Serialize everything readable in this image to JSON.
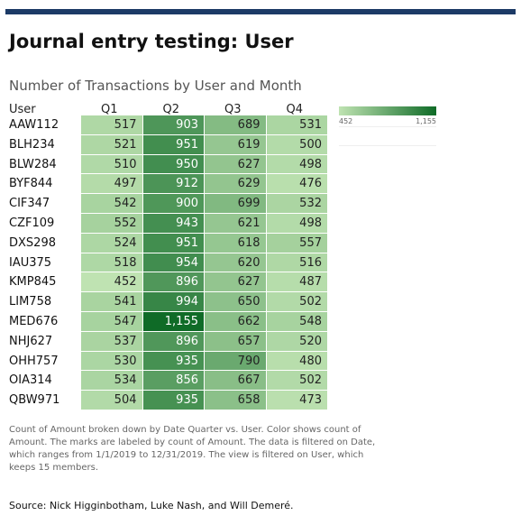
{
  "page": {
    "title": "Journal entry testing: User",
    "caption": "Count of Amount broken down by Date Quarter vs. User.  Color shows count of Amount.  The marks are labeled by count of Amount. The data is filtered on Date, which ranges from 1/1/2019 to 12/31/2019. The view is filtered on User, which keeps 15 members.",
    "source": "Source: Nick Higginbotham, Luke Nash, and Will Demeré."
  },
  "colors": {
    "low": "#bfe3b2",
    "high": "#0f6b27",
    "rule": "#1c3a66"
  },
  "chart_data": {
    "type": "heatmap",
    "title": "Number of Transactions by User and Month",
    "row_header": "User",
    "columns": [
      "Q1",
      "Q2",
      "Q3",
      "Q4"
    ],
    "rows": [
      "AAW112",
      "BLH234",
      "BLW284",
      "BYF844",
      "CIF347",
      "CZF109",
      "DXS298",
      "IAU375",
      "KMP845",
      "LIM758",
      "MED676",
      "NHJ627",
      "OHH757",
      "OIA314",
      "QBW971"
    ],
    "values": [
      [
        517,
        903,
        689,
        531
      ],
      [
        521,
        951,
        619,
        500
      ],
      [
        510,
        950,
        627,
        498
      ],
      [
        497,
        912,
        629,
        476
      ],
      [
        542,
        900,
        699,
        532
      ],
      [
        552,
        943,
        621,
        498
      ],
      [
        524,
        951,
        618,
        557
      ],
      [
        518,
        954,
        620,
        516
      ],
      [
        452,
        896,
        627,
        487
      ],
      [
        541,
        994,
        650,
        502
      ],
      [
        547,
        1155,
        662,
        548
      ],
      [
        537,
        896,
        657,
        520
      ],
      [
        530,
        935,
        790,
        480
      ],
      [
        534,
        856,
        667,
        502
      ],
      [
        504,
        935,
        658,
        473
      ]
    ],
    "legend": {
      "min": 452,
      "max": 1155,
      "min_label": "452",
      "max_label": "1,155"
    }
  }
}
